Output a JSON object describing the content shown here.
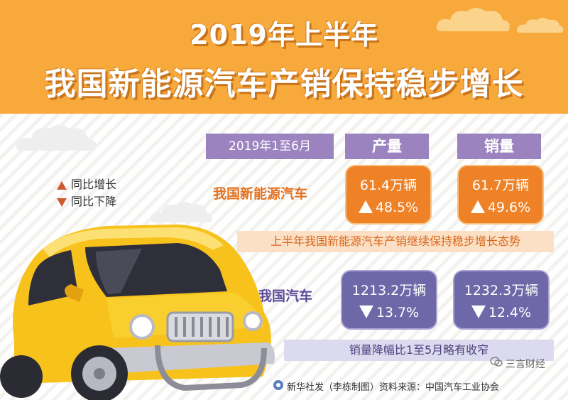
{
  "header": {
    "title_line1": "2019年上半年",
    "title_line2": "我国新能源汽车产销保持稳步增长"
  },
  "legend": {
    "up_label": "同比增长",
    "down_label": "同比下降"
  },
  "table": {
    "period_label": "2019年1至6月",
    "col_production": "产量",
    "col_sales": "销量",
    "rows": [
      {
        "label": "我国新能源汽车",
        "production": {
          "amount": "61.4万辆",
          "change": "48.5%",
          "direction": "up"
        },
        "sales": {
          "amount": "61.7万辆",
          "change": "49.6%",
          "direction": "up"
        },
        "note": "上半年我国新能源汽车产销继续保持稳步增长态势"
      },
      {
        "label": "我国汽车",
        "production": {
          "amount": "1213.2万辆",
          "change": "13.7%",
          "direction": "down"
        },
        "sales": {
          "amount": "1232.3万辆",
          "change": "12.4%",
          "direction": "down"
        },
        "note": "销量降幅比1至5月略有收窄"
      }
    ]
  },
  "footer": {
    "credit": "新华社发（李栋制图）资料来源：中国汽车工业协会",
    "watermark": "三言财经"
  },
  "icons": {
    "car": "yellow-car-illustration",
    "cloud": "cloud-icon",
    "xinhua": "xinhua-logo",
    "wechat": "wechat-icon"
  },
  "colors": {
    "header_orange": "#f7a93c",
    "box_orange": "#ef8127",
    "box_purple": "#6f68a8",
    "head_purple": "#9b83bf",
    "triangle_red": "#cf5a2f"
  }
}
